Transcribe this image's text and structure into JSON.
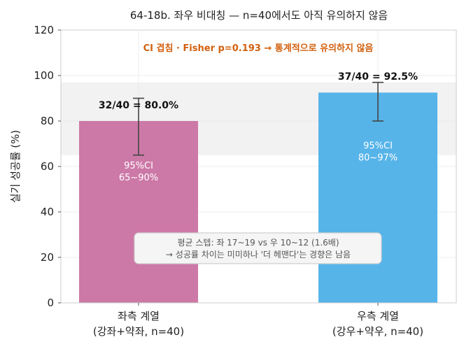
{
  "chart_data": {
    "type": "bar",
    "title": "64-18b. 좌우 비대칭 — n=40에서도 아직 유의하지 않음",
    "ylabel": "실기 성공률 (%)",
    "xlabel": "",
    "ylim": [
      0,
      120
    ],
    "yticks": [
      "0",
      "20",
      "40",
      "60",
      "80",
      "100",
      "120"
    ],
    "grid": true,
    "categories": [
      {
        "line1": "좌측 계열",
        "line2": "(강좌+약좌, n=40)"
      },
      {
        "line1": "우측 계열",
        "line2": "(강우+약우, n=40)"
      }
    ],
    "values": [
      80.0,
      92.5
    ],
    "ci_low": [
      65,
      80
    ],
    "ci_high": [
      90,
      97
    ],
    "colors": [
      "#cc79a7",
      "#56b4e9"
    ],
    "bar_labels": [
      "32/40 = 80.0%",
      "37/40 = 92.5%"
    ],
    "ci_labels": [
      {
        "line1": "95%CI",
        "line2": "65~90%"
      },
      {
        "line1": "95%CI",
        "line2": "80~97%"
      }
    ],
    "overlap_band": [
      65,
      97
    ],
    "annotation": "CI 겹침 · Fisher p=0.193 → 통계적으로 유의하지 않음",
    "note": {
      "line1": "평균 스텝: 좌 17~19 vs 우 10~12 (1.6배)",
      "line2": "→ 성공률 차이는 미미하나 '더 헤맨다'는 경향은 남음"
    }
  }
}
